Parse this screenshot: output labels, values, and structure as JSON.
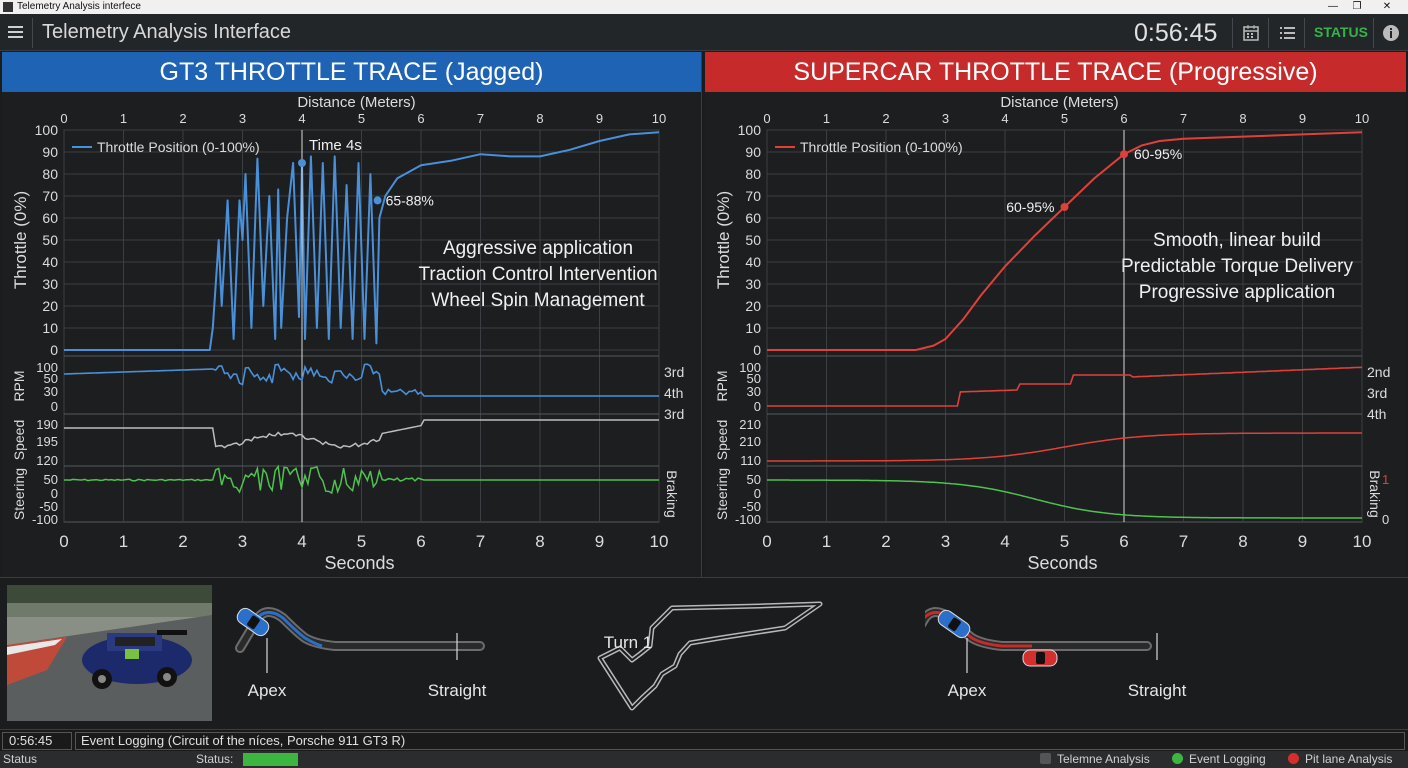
{
  "window": {
    "title": "Telemetry Analysis interfece",
    "minimize": "—",
    "maximize": "❐",
    "close": "✕"
  },
  "header": {
    "app_title": "Telemetry Analysis Interface",
    "clock": "0:56:45",
    "status_label": "STATUS"
  },
  "left_panel": {
    "title": "GT3 THROTTLE TRACE (Jagged)",
    "accent": "#4a90d9",
    "legend": "Throttle Position (0-100%)",
    "marker_time": "Time 4s",
    "annotation_point": "65-88%",
    "notes": [
      "Aggressive application",
      "Traction Control Intervention",
      "Wheel Spin Management"
    ],
    "gears": [
      "3rd",
      "4th",
      "3rd"
    ],
    "side_label": "Braking"
  },
  "right_panel": {
    "title": "SUPERCAR THROTTLE TRACE (Progressive)",
    "accent": "#e0403a",
    "legend": "Throttle Position (0-100%)",
    "annotation_low": "60-95%",
    "annotation_high": "60-95%",
    "notes": [
      "Smooth, linear build",
      "Predictable Torque Delivery",
      "Progressive application"
    ],
    "gears": [
      "2nd",
      "3rd",
      "4th"
    ],
    "side_label": "Braking",
    "braking_ticks": [
      "1",
      "0"
    ]
  },
  "axes": {
    "top_label": "Distance (Meters)",
    "bottom_label": "Seconds",
    "x_ticks": [
      "0",
      "1",
      "2",
      "3",
      "4",
      "5",
      "6",
      "7",
      "8",
      "9",
      "10"
    ],
    "throttle_label": "Throttle (0%)",
    "throttle_ticks": [
      "100",
      "90",
      "80",
      "70",
      "60",
      "50",
      "40",
      "30",
      "20",
      "10",
      "0"
    ],
    "rpm_label": "RPM",
    "rpm_ticks": [
      "100",
      "50",
      "30",
      "0"
    ],
    "speed_label": "Speed",
    "speed_ticks_left": [
      "190",
      "195",
      "120"
    ],
    "speed_ticks_right": [
      "210",
      "210",
      "110"
    ],
    "steering_label": "Steering",
    "steering_ticks": [
      "50",
      "0",
      "-50",
      "-100"
    ]
  },
  "chart_data": [
    {
      "type": "line",
      "title": "GT3 THROTTLE TRACE (Jagged)",
      "xlabel": "Seconds",
      "ylabel": "Throttle (0%)",
      "ylim": [
        0,
        100
      ],
      "xlim": [
        0,
        10
      ],
      "series": [
        {
          "name": "Throttle Position (0-100%)",
          "x": [
            0,
            2.45,
            2.5,
            2.6,
            2.65,
            2.75,
            2.85,
            2.95,
            3.0,
            3.05,
            3.15,
            3.25,
            3.35,
            3.45,
            3.55,
            3.6,
            3.65,
            3.75,
            3.85,
            3.95,
            4.0,
            4.05,
            4.15,
            4.25,
            4.35,
            4.45,
            4.55,
            4.65,
            4.75,
            4.85,
            4.95,
            5.05,
            5.15,
            5.25,
            5.3,
            5.4,
            5.6,
            6.0,
            6.5,
            7.0,
            7.5,
            8.0,
            8.5,
            9.0,
            9.5,
            10.0
          ],
          "y": [
            0,
            0,
            10,
            50,
            20,
            68,
            5,
            68,
            50,
            80,
            10,
            87,
            20,
            70,
            5,
            73,
            10,
            60,
            85,
            15,
            85,
            5,
            88,
            10,
            85,
            5,
            88,
            10,
            75,
            5,
            85,
            5,
            80,
            3,
            60,
            70,
            78,
            84,
            86,
            89,
            88,
            88,
            91,
            95,
            98,
            99
          ]
        }
      ]
    },
    {
      "type": "line",
      "title": "SUPERCAR THROTTLE TRACE (Progressive)",
      "xlabel": "Seconds",
      "ylabel": "Throttle (0%)",
      "ylim": [
        0,
        100
      ],
      "xlim": [
        0,
        10
      ],
      "series": [
        {
          "name": "Throttle Position (0-100%)",
          "x": [
            0,
            2.5,
            2.8,
            3.0,
            3.3,
            3.6,
            4.0,
            4.5,
            5.0,
            5.5,
            6.0,
            6.3,
            6.6,
            7.0,
            8.0,
            9.0,
            10.0
          ],
          "y": [
            0,
            0,
            2,
            5,
            14,
            25,
            38,
            52,
            65,
            78,
            89,
            93,
            95,
            96,
            97,
            98,
            99
          ]
        }
      ]
    }
  ],
  "bottom": {
    "left_apex": "Apex",
    "left_straight": "Straight",
    "track_label": "Turn 1",
    "right_apex": "Apex",
    "right_straight": "Straight"
  },
  "log": {
    "time": "0:56:45",
    "message": "Event Logging (Circuit of the níces, Porsche 911 GT3 R)"
  },
  "statusbar": {
    "label": "Status",
    "status": "Status:",
    "items": [
      {
        "label": "Telemne Analysis",
        "color": "#555555"
      },
      {
        "label": "Event Logging",
        "color": "#3cb541"
      },
      {
        "label": "Pit lane Analysis",
        "color": "#d32f2f"
      }
    ]
  }
}
